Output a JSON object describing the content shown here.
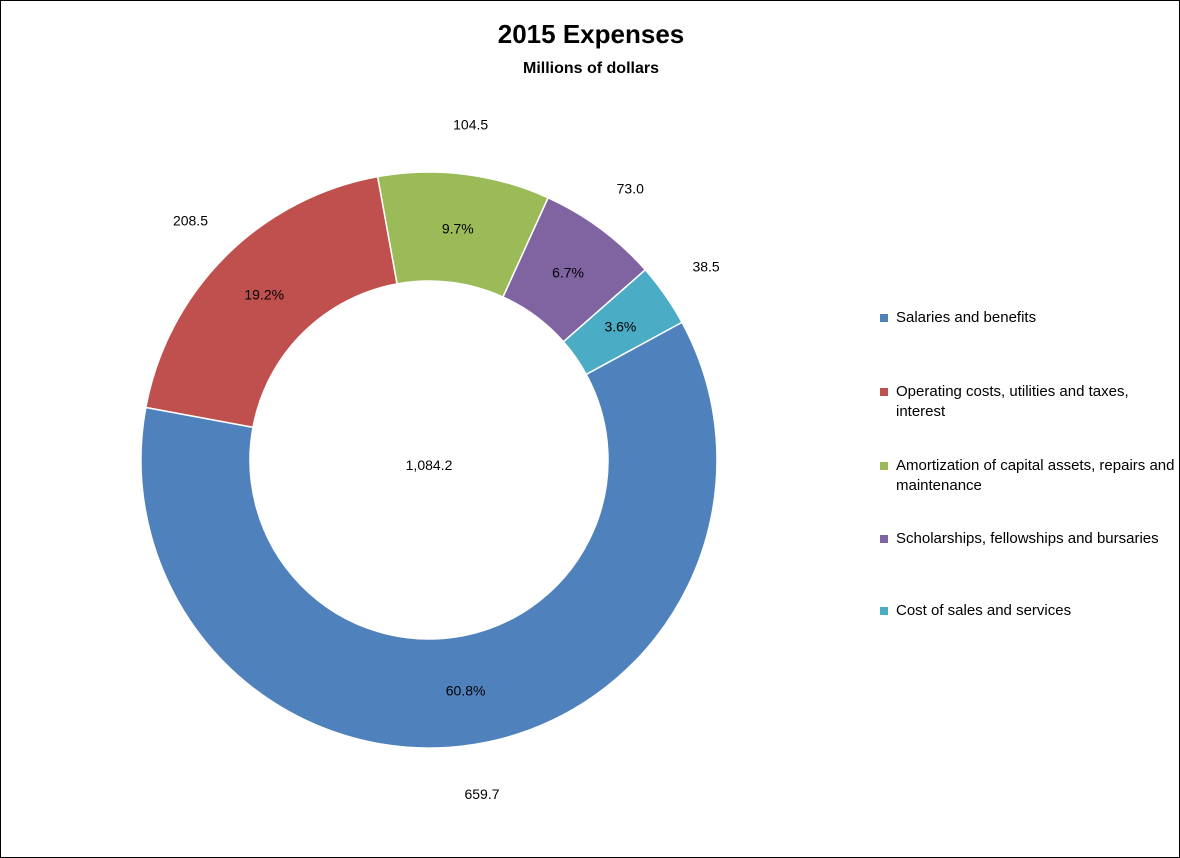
{
  "chart_data": {
    "type": "pie",
    "variant": "donut",
    "title": "2015 Expenses",
    "subtitle": "Millions of dollars",
    "center_label": "1,084.2",
    "legend_position": "right",
    "slices": [
      {
        "name": "Salaries and benefits",
        "value": 659.7,
        "value_label": "659.7",
        "percent_label": "60.8%",
        "color": "#4F81BD"
      },
      {
        "name": "Operating costs, utilities and taxes, interest",
        "value": 208.5,
        "value_label": "208.5",
        "percent_label": "19.2%",
        "color": "#C0504D"
      },
      {
        "name": "Amortization of capital assets, repairs and maintenance",
        "value": 104.5,
        "value_label": "104.5",
        "percent_label": "9.7%",
        "color": "#9BBB59"
      },
      {
        "name": "Scholarships, fellowships and bursaries",
        "value": 73.0,
        "value_label": "73.0",
        "percent_label": "6.7%",
        "color": "#8064A2"
      },
      {
        "name": "Cost of sales and services",
        "value": 38.5,
        "value_label": "38.5",
        "percent_label": "3.6%",
        "color": "#4BACC6"
      }
    ]
  }
}
